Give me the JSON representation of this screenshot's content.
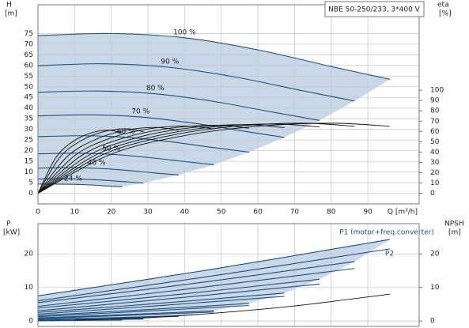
{
  "chart_data": [
    {
      "type": "line",
      "title": "NBE 50-250/233, 3*400 V",
      "ylabel": "H",
      "yunit": "[m]",
      "y2label": "eta",
      "y2unit": "[%]",
      "xlabel": "Q [m³/h]",
      "xlim": [
        0,
        104
      ],
      "xticks": [
        0,
        10,
        20,
        30,
        40,
        50,
        60,
        70,
        80,
        90
      ],
      "ylim": [
        -5,
        88.5
      ],
      "yticks": [
        0,
        5,
        10,
        15,
        20,
        25,
        30,
        35,
        40,
        45,
        50,
        55,
        60,
        65,
        70,
        75
      ],
      "y2lim": [
        -10.3,
        182.9
      ],
      "y2ticks": [
        0,
        10,
        20,
        30,
        40,
        50,
        60,
        70,
        80,
        90,
        100
      ],
      "grid": true,
      "area_color": "#c9d8e8",
      "series": [
        {
          "name": "100 %",
          "color": "#1f4e79",
          "shaded": true,
          "x": [
            0,
            20,
            40,
            60,
            80,
            96
          ],
          "values": [
            74,
            75,
            73,
            67.3,
            59.5,
            53.5
          ]
        },
        {
          "name": "90 %",
          "color": "#1f4e79",
          "shaded": true,
          "x": [
            0,
            18,
            36,
            54,
            72,
            86.4
          ],
          "values": [
            59.9,
            60.8,
            59.1,
            54.5,
            48.2,
            43.3
          ]
        },
        {
          "name": "80 %",
          "color": "#1f4e79",
          "shaded": true,
          "x": [
            0,
            16,
            32,
            48,
            64,
            76.8
          ],
          "values": [
            47.4,
            48,
            46.7,
            43.1,
            38.1,
            34.2
          ]
        },
        {
          "name": "70 %",
          "color": "#1f4e79",
          "shaded": true,
          "x": [
            0,
            14,
            28,
            42,
            56,
            67.2
          ],
          "values": [
            36.3,
            36.8,
            35.8,
            33,
            29.2,
            26.2
          ]
        },
        {
          "name": "60 %",
          "color": "#1f4e79",
          "shaded": true,
          "x": [
            0,
            12,
            24,
            36,
            48,
            57.6
          ],
          "values": [
            26.6,
            27,
            26.3,
            24.2,
            21.4,
            19.3
          ]
        },
        {
          "name": "50 %",
          "color": "#1f4e79",
          "shaded": true,
          "x": [
            0,
            10,
            20,
            30,
            40,
            48
          ],
          "values": [
            18.5,
            18.8,
            18.3,
            16.8,
            14.9,
            13.4
          ]
        },
        {
          "name": "40 %",
          "color": "#1f4e79",
          "shaded": true,
          "x": [
            0,
            8,
            16,
            24,
            32,
            38.4
          ],
          "values": [
            11.8,
            12,
            11.7,
            10.8,
            9.5,
            8.6
          ]
        },
        {
          "name": null,
          "color": "#1f4e79",
          "shaded": true,
          "x": [
            0,
            6,
            12,
            18,
            24,
            28.8
          ],
          "values": [
            6.7,
            6.8,
            6.6,
            6.1,
            5.4,
            4.8
          ]
        },
        {
          "name": "24 %",
          "color": "#1f4e79",
          "shaded": true,
          "x": [
            0,
            4.8,
            9.6,
            14.4,
            19.2,
            23
          ],
          "values": [
            4.3,
            4.3,
            4.2,
            3.9,
            3.4,
            3.1
          ]
        },
        {
          "name": null,
          "color": "#111111",
          "axis": "y2",
          "x": [
            0,
            20,
            40,
            60,
            80,
            96
          ],
          "values": [
            0,
            38,
            56,
            65,
            68,
            65
          ]
        },
        {
          "name": null,
          "color": "#111111",
          "axis": "y2",
          "x": [
            0,
            18,
            36,
            54,
            72,
            86.4
          ],
          "values": [
            0,
            38,
            56,
            65,
            68,
            65
          ]
        },
        {
          "name": null,
          "color": "#111111",
          "axis": "y2",
          "x": [
            0,
            16,
            32,
            48,
            64,
            76.8
          ],
          "values": [
            0,
            37.6,
            55.4,
            64.4,
            67.3,
            64.4
          ]
        },
        {
          "name": null,
          "color": "#111111",
          "axis": "y2",
          "x": [
            0,
            14,
            28,
            42,
            56,
            67.2
          ],
          "values": [
            0,
            37.2,
            54.9,
            63.7,
            66.6,
            63.7
          ]
        },
        {
          "name": null,
          "color": "#111111",
          "axis": "y2",
          "x": [
            0,
            12,
            24,
            36,
            48,
            57.6
          ],
          "values": [
            0,
            36.9,
            54.3,
            63.1,
            66,
            63.1
          ]
        },
        {
          "name": null,
          "color": "#111111",
          "axis": "y2",
          "x": [
            0,
            10,
            20,
            30,
            40,
            48
          ],
          "values": [
            0,
            36.5,
            53.8,
            62.4,
            65.3,
            62.4
          ]
        },
        {
          "name": null,
          "color": "#111111",
          "axis": "y2",
          "x": [
            0,
            8,
            16,
            24,
            32,
            38.4
          ],
          "values": [
            0,
            35.7,
            52.6,
            61.1,
            63.9,
            61.1
          ]
        },
        {
          "name": null,
          "color": "#111111",
          "axis": "y2",
          "x": [
            0,
            6,
            12,
            18,
            24,
            28.8
          ],
          "values": [
            0,
            35,
            51.5,
            59.8,
            62.6,
            59.8
          ]
        },
        {
          "name": null,
          "color": "#111111",
          "axis": "y2",
          "x": [
            0,
            4.8,
            9.6,
            14.4,
            19.2,
            23
          ],
          "values": [
            0,
            34.2,
            50.4,
            58.5,
            61.2,
            58.5
          ]
        }
      ]
    },
    {
      "type": "line",
      "ylabel": "P",
      "yunit": "[kW]",
      "y2label": "NPSH",
      "y2unit": "[m]",
      "xlim": [
        0,
        104
      ],
      "xticks": [
        0,
        10,
        20,
        30,
        40,
        50,
        60,
        70,
        80,
        90
      ],
      "ylim": [
        -1.6,
        29
      ],
      "yticks": [
        0,
        10,
        20
      ],
      "y2lim": [
        -1.6,
        29
      ],
      "y2ticks": [
        0,
        10,
        20
      ],
      "grid": true,
      "area_color": "#c9d8e8",
      "series": [
        {
          "name": "P1 (motor+freq.converter)",
          "color": "#1f4e79",
          "shaded": true,
          "x": [
            0,
            48,
            96
          ],
          "values": [
            7.5,
            15.5,
            24.3
          ]
        },
        {
          "name": null,
          "color": "#1f4e79",
          "shaded": true,
          "x": [
            0,
            43.2,
            86.4
          ],
          "values": [
            5.47,
            11.3,
            17.71
          ]
        },
        {
          "name": null,
          "color": "#1f4e79",
          "shaded": true,
          "x": [
            0,
            38.4,
            76.8
          ],
          "values": [
            3.84,
            7.94,
            12.44
          ]
        },
        {
          "name": null,
          "color": "#1f4e79",
          "shaded": true,
          "x": [
            0,
            33.6,
            67.2
          ],
          "values": [
            2.57,
            5.32,
            8.33
          ]
        },
        {
          "name": null,
          "color": "#1f4e79",
          "shaded": true,
          "x": [
            0,
            28.8,
            57.6
          ],
          "values": [
            1.62,
            3.35,
            5.25
          ]
        },
        {
          "name": null,
          "color": "#1f4e79",
          "shaded": true,
          "x": [
            0,
            24,
            48
          ],
          "values": [
            0.94,
            1.94,
            3.04
          ]
        },
        {
          "name": null,
          "color": "#1f4e79",
          "shaded": true,
          "x": [
            0,
            19.2,
            38.4
          ],
          "values": [
            0.48,
            0.99,
            1.56
          ]
        },
        {
          "name": null,
          "color": "#1f4e79",
          "shaded": true,
          "x": [
            0,
            14.4,
            28.8
          ],
          "values": [
            0.2,
            0.42,
            0.66
          ]
        },
        {
          "name": null,
          "color": "#1f4e79",
          "shaded": true,
          "x": [
            0,
            11.5,
            23
          ],
          "values": [
            0.1,
            0.21,
            0.34
          ]
        },
        {
          "name": "P2",
          "color": "#1f4e79",
          "x": [
            0,
            48,
            96
          ],
          "values": [
            6,
            13.5,
            21.5
          ]
        },
        {
          "name": null,
          "color": "#1f4e79",
          "x": [
            0,
            43.2,
            86.4
          ],
          "values": [
            4.37,
            9.84,
            15.67
          ]
        },
        {
          "name": null,
          "color": "#1f4e79",
          "x": [
            0,
            38.4,
            76.8
          ],
          "values": [
            3.07,
            6.91,
            11.01
          ]
        },
        {
          "name": null,
          "color": "#1f4e79",
          "x": [
            0,
            33.6,
            67.2
          ],
          "values": [
            2.06,
            4.63,
            7.37
          ]
        },
        {
          "name": null,
          "color": "#1f4e79",
          "x": [
            0,
            28.8,
            57.6
          ],
          "values": [
            1.3,
            2.92,
            4.64
          ]
        },
        {
          "name": null,
          "color": "#1f4e79",
          "x": [
            0,
            24,
            48
          ],
          "values": [
            0.75,
            1.69,
            2.69
          ]
        },
        {
          "name": null,
          "color": "#1f4e79",
          "x": [
            0,
            19.2,
            38.4
          ],
          "values": [
            0.38,
            0.86,
            1.38
          ]
        },
        {
          "name": null,
          "color": "#1f4e79",
          "x": [
            0,
            14.4,
            28.8
          ],
          "values": [
            0.16,
            0.36,
            0.58
          ]
        },
        {
          "name": null,
          "color": "#1f4e79",
          "x": [
            0,
            11.5,
            23
          ],
          "values": [
            0.08,
            0.19,
            0.3
          ]
        },
        {
          "name": null,
          "color": "#111111",
          "axis": "y2",
          "x": [
            10,
            30,
            50,
            70,
            96
          ],
          "values": [
            0.3,
            1,
            2.5,
            4.5,
            8
          ]
        }
      ]
    }
  ]
}
